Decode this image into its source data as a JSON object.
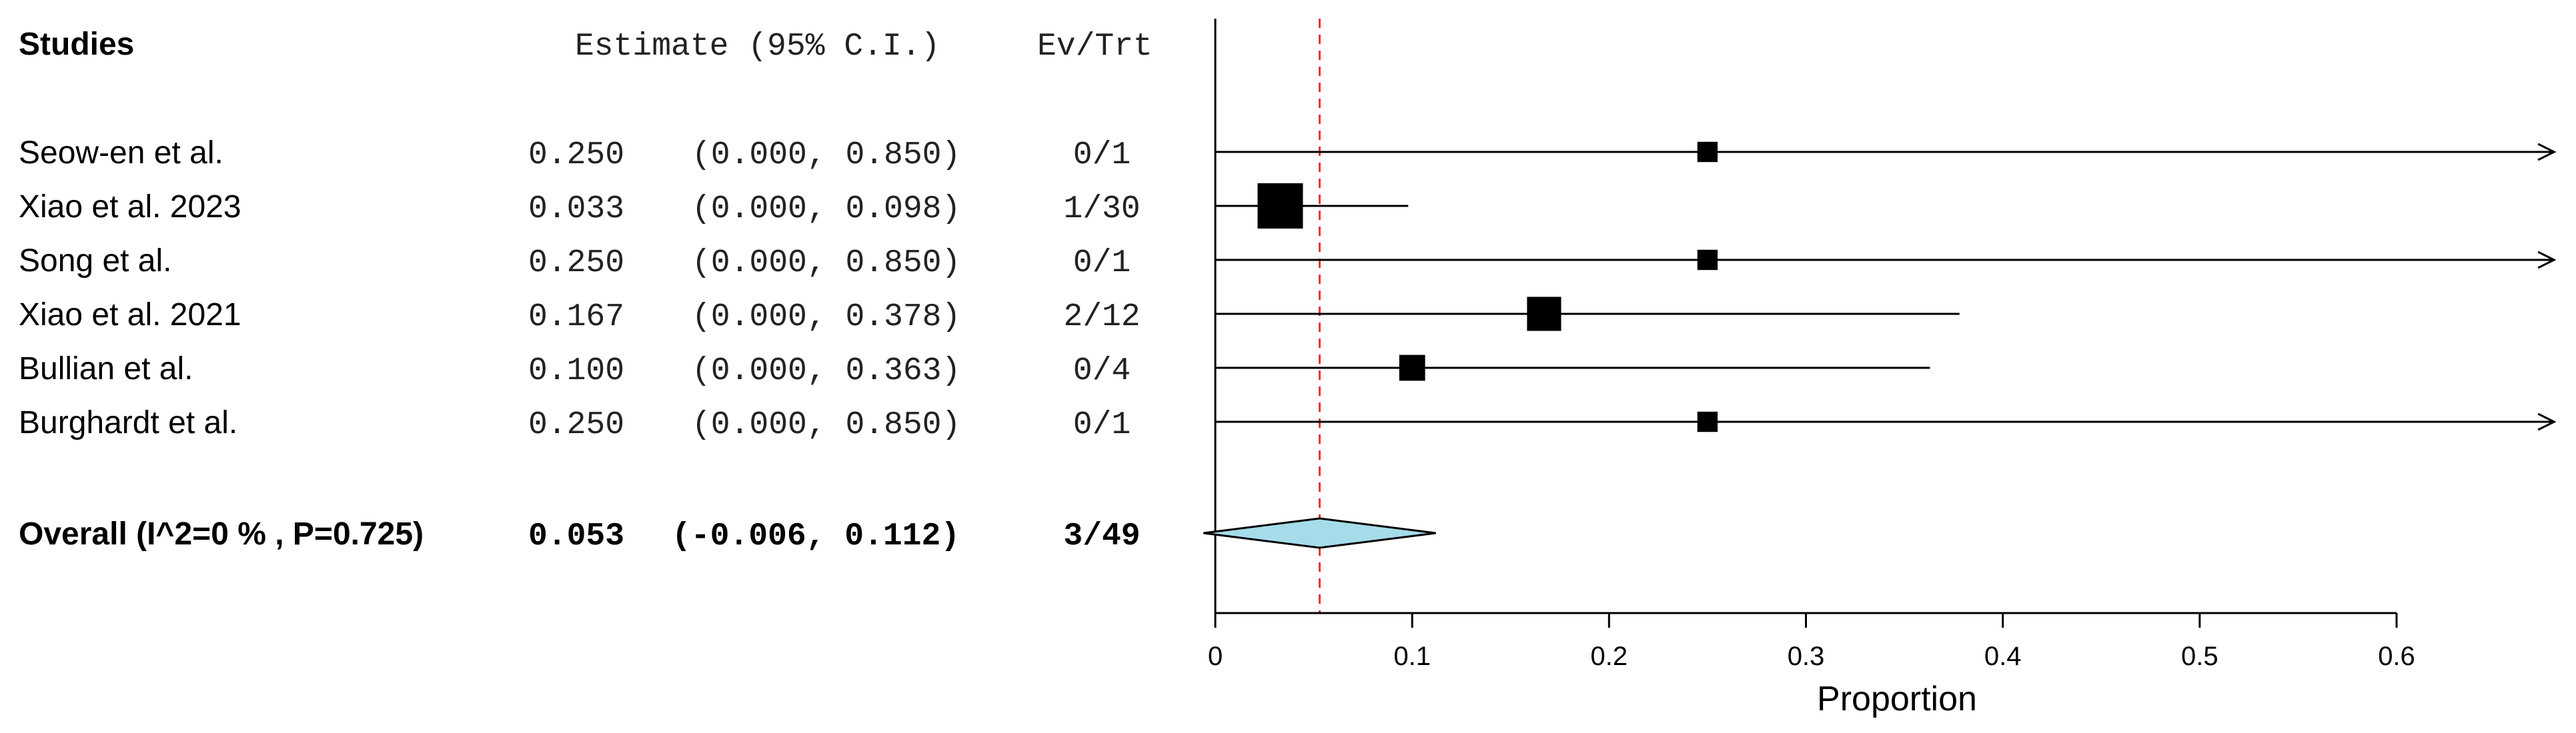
{
  "chart_data": {
    "type": "forest",
    "headers": {
      "studies": "Studies",
      "estimate": "Estimate (95% C.I.)",
      "ev_trt": "Ev/Trt"
    },
    "studies": [
      {
        "name": "Seow-en et al.",
        "est": 0.25,
        "lo": 0.0,
        "hi": 0.85,
        "est_text": "0.250",
        "ci_text": "(0.000, 0.850)",
        "ev_trt": "0/1",
        "weight": 1
      },
      {
        "name": " Xiao et al. 2023",
        "est": 0.033,
        "lo": 0.0,
        "hi": 0.098,
        "est_text": "0.033",
        "ci_text": "(0.000, 0.098)",
        "ev_trt": "1/30",
        "weight": 30
      },
      {
        "name": "Song et al.",
        "est": 0.25,
        "lo": 0.0,
        "hi": 0.85,
        "est_text": "0.250",
        "ci_text": "(0.000, 0.850)",
        "ev_trt": "0/1",
        "weight": 1
      },
      {
        "name": "Xiao et al. 2021",
        "est": 0.167,
        "lo": 0.0,
        "hi": 0.378,
        "est_text": "0.167",
        "ci_text": "(0.000, 0.378)",
        "ev_trt": "2/12",
        "weight": 12
      },
      {
        "name": "Bullian et al.",
        "est": 0.1,
        "lo": 0.0,
        "hi": 0.363,
        "est_text": "0.100",
        "ci_text": "(0.000, 0.363)",
        "ev_trt": "0/4",
        "weight": 4
      },
      {
        "name": "Burghardt et al.",
        "est": 0.25,
        "lo": 0.0,
        "hi": 0.85,
        "est_text": "0.250",
        "ci_text": "(0.000, 0.850)",
        "ev_trt": "0/1",
        "weight": 1
      }
    ],
    "overall": {
      "label": "Overall (I^2=0 % , P=0.725)",
      "est": 0.053,
      "lo": -0.006,
      "hi": 0.112,
      "est_text": "0.053",
      "ci_text": "(-0.006, 0.112)",
      "ev_trt": "3/49"
    },
    "x_axis": {
      "label": "Proportion",
      "ticks": [
        0,
        0.1,
        0.2,
        0.3,
        0.4,
        0.5,
        0.6
      ],
      "tick_labels": [
        "0",
        "0.1",
        "0.2",
        "0.3",
        "0.4",
        "0.5",
        "0.6"
      ],
      "display_range": [
        0,
        0.68
      ]
    },
    "reference_line": 0.053,
    "colors": {
      "diamond_fill": "#a6dcea",
      "reference_line": "#e8312f",
      "ink": "#000000"
    }
  }
}
